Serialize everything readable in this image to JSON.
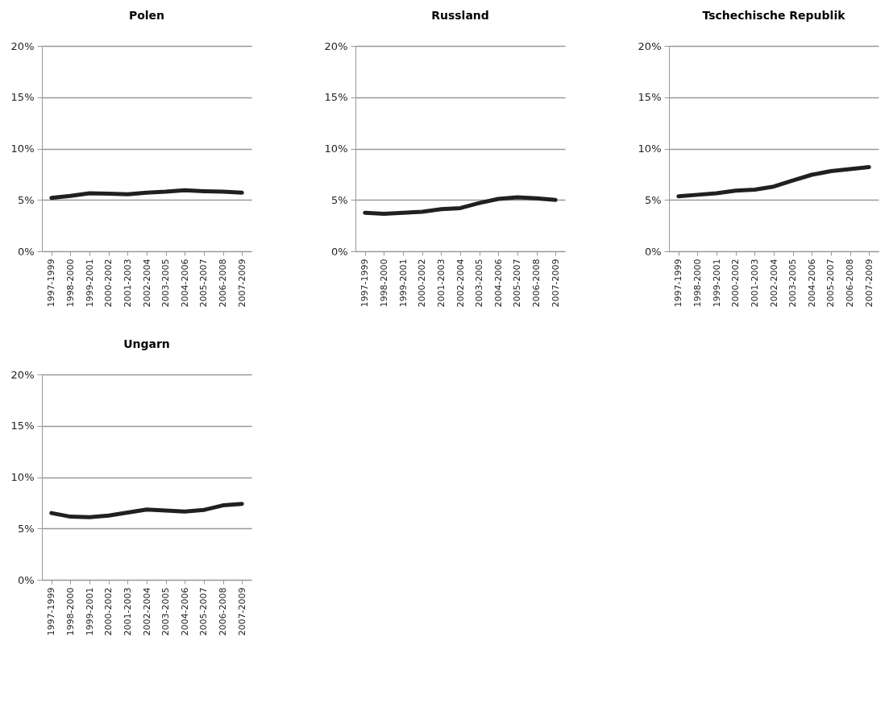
{
  "chart_data": [
    {
      "type": "line",
      "title": "Polen",
      "categories": [
        "1997-1999",
        "1998-2000",
        "1999-2001",
        "2000-2002",
        "2001-2003",
        "2002-2004",
        "2003-2005",
        "2004-2006",
        "2005-2007",
        "2006-2008",
        "2007-2009"
      ],
      "series": [
        {
          "color": "#231f20",
          "values": [
            5.2,
            5.4,
            5.65,
            5.6,
            5.55,
            5.7,
            5.8,
            5.95,
            5.85,
            5.8,
            5.7
          ]
        }
      ],
      "ylim": [
        0,
        20
      ],
      "yticks": [
        {
          "value": 0,
          "label": "0%"
        },
        {
          "value": 5,
          "label": "5%"
        },
        {
          "value": 10,
          "label": "10%"
        },
        {
          "value": 15,
          "label": "15%"
        },
        {
          "value": 20,
          "label": "20%"
        }
      ],
      "grid": "y",
      "legend": false
    },
    {
      "type": "line",
      "title": "Russland",
      "categories": [
        "1997-1999",
        "1998-2000",
        "1999-2001",
        "2000-2002",
        "2001-2003",
        "2002-2004",
        "2003-2005",
        "2004-2006",
        "2005-2007",
        "2006-2008",
        "2007-2009"
      ],
      "series": [
        {
          "color": "#231f20",
          "values": [
            3.75,
            3.65,
            3.75,
            3.85,
            4.1,
            4.2,
            4.7,
            5.1,
            5.25,
            5.15,
            5.0
          ]
        }
      ],
      "ylim": [
        0,
        20
      ],
      "yticks": [
        {
          "value": 0,
          "label": "0%"
        },
        {
          "value": 5,
          "label": "5%"
        },
        {
          "value": 10,
          "label": "10%"
        },
        {
          "value": 15,
          "label": "15%"
        },
        {
          "value": 20,
          "label": "20%"
        }
      ],
      "grid": "y",
      "legend": false
    },
    {
      "type": "line",
      "title": "Tschechische Republik",
      "categories": [
        "1997-1999",
        "1998-2000",
        "1999-2001",
        "2000-2002",
        "2001-2003",
        "2002-2004",
        "2003-2005",
        "2004-2006",
        "2005-2007",
        "2006-2008",
        "2007-2009"
      ],
      "series": [
        {
          "color": "#231f20",
          "values": [
            5.35,
            5.5,
            5.65,
            5.9,
            6.0,
            6.3,
            6.9,
            7.45,
            7.8,
            8.0,
            8.2
          ]
        }
      ],
      "ylim": [
        0,
        20
      ],
      "yticks": [
        {
          "value": 0,
          "label": "0%"
        },
        {
          "value": 5,
          "label": "5%"
        },
        {
          "value": 10,
          "label": "10%"
        },
        {
          "value": 15,
          "label": "15%"
        },
        {
          "value": 20,
          "label": "20%"
        }
      ],
      "grid": "y",
      "legend": false
    },
    {
      "type": "line",
      "title": "Ungarn",
      "categories": [
        "1997-1999",
        "1998-2000",
        "1999-2001",
        "2000-2002",
        "2001-2003",
        "2002-2004",
        "2003-2005",
        "2004-2006",
        "2005-2007",
        "2006-2008",
        "2007-2009"
      ],
      "series": [
        {
          "color": "#231f20",
          "values": [
            6.5,
            6.15,
            6.1,
            6.25,
            6.55,
            6.85,
            6.75,
            6.65,
            6.8,
            7.25,
            7.4
          ]
        }
      ],
      "ylim": [
        0,
        20
      ],
      "yticks": [
        {
          "value": 0,
          "label": "0%"
        },
        {
          "value": 5,
          "label": "5%"
        },
        {
          "value": 10,
          "label": "10%"
        },
        {
          "value": 15,
          "label": "15%"
        },
        {
          "value": 20,
          "label": "20%"
        }
      ],
      "grid": "y",
      "legend": false
    }
  ]
}
